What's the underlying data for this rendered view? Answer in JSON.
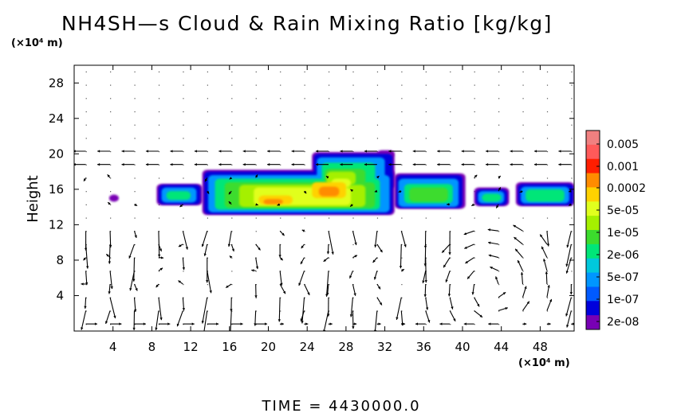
{
  "chart_data": {
    "type": "heatmap",
    "title": "NH4SH—s Cloud & Rain Mixing Ratio [kg/kg]",
    "y_unit": "(×10⁴ m)",
    "x_unit": "(×10⁴ m)",
    "ylabel": "Height",
    "xlabel": "",
    "footer": "TIME  =  4430000.0",
    "xlim": [
      0,
      51.5
    ],
    "ylim": [
      0,
      30
    ],
    "x_ticks": [
      4,
      8,
      12,
      16,
      20,
      24,
      28,
      32,
      36,
      40,
      44,
      48
    ],
    "x_tick_labels": [
      "4",
      "8",
      "12",
      "16",
      "20",
      "24",
      "28",
      "32",
      "36",
      "40",
      "44",
      "48"
    ],
    "y_ticks": [
      4,
      8,
      12,
      16,
      20,
      24,
      28
    ],
    "y_tick_labels": [
      "4",
      "8",
      "12",
      "16",
      "20",
      "24",
      "28"
    ],
    "colorbar": {
      "labels": [
        "0.005",
        "0.001",
        "0.0002",
        "5e-05",
        "1e-05",
        "2e-06",
        "5e-07",
        "1e-07",
        "2e-08"
      ],
      "colors": [
        "#f08080",
        "#ff5a5a",
        "#ff1e00",
        "#ff8c00",
        "#ffd200",
        "#e1ff1e",
        "#a5f000",
        "#3cdc2d",
        "#00e678",
        "#00c8dc",
        "#0096ff",
        "#005aff",
        "#0000dc",
        "#7800b4"
      ]
    },
    "cloud_band": {
      "description_level": "mixing ratio contours between ~13 and ~20 km-units height",
      "x_range": [
        3.5,
        51.5
      ],
      "y_range": [
        13,
        20
      ],
      "peak_value_label": "0.0002",
      "peak_x": [
        18,
        27
      ],
      "peak_y": [
        14,
        17
      ]
    },
    "vector_field": {
      "type": "quiver",
      "grid_dx": 2.5,
      "grid_dy": 1.5,
      "upper_level_flow": "mostly leftward near y=19",
      "lower_level_flow": "circulations near x=40-48, y=2-10"
    }
  }
}
